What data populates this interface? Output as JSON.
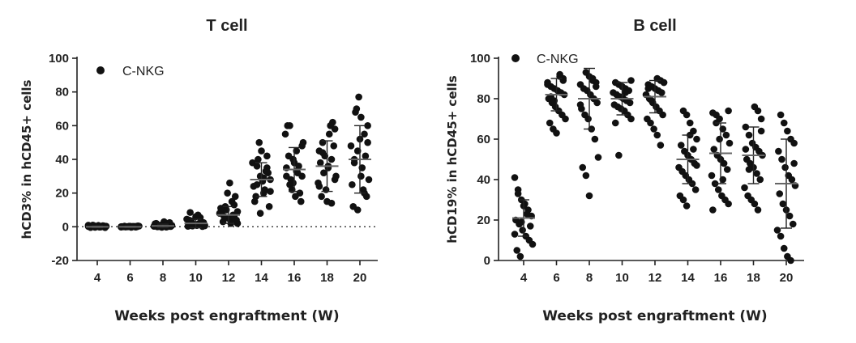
{
  "chart_data": [
    {
      "type": "scatter",
      "title": "T cell",
      "xlabel": "Weeks post engraftment (W)",
      "ylabel": "hCD3% in hCD45+ cells",
      "legend": "C-NKG",
      "legend_position": "top-left",
      "categories": [
        "4",
        "6",
        "8",
        "10",
        "12",
        "14",
        "16",
        "18",
        "20"
      ],
      "ylim": [
        -20,
        100
      ],
      "yticks": [
        "-20",
        "0",
        "20",
        "40",
        "60",
        "80",
        "100"
      ],
      "reference_line_y": 0,
      "groups": [
        {
          "week": "4",
          "mean": 0,
          "sd": 0.5,
          "values": [
            0.2,
            0.5,
            -0.3,
            0.8,
            0.1,
            -0.5,
            0.4,
            1.0,
            0.0,
            -0.2,
            0.6,
            0.3,
            -0.4,
            0.7,
            0.2,
            -0.1,
            0.5,
            0.9,
            0.0,
            0.3
          ]
        },
        {
          "week": "6",
          "mean": 0,
          "sd": 0.4,
          "values": [
            0.1,
            0.3,
            -0.2,
            0.4,
            0.0,
            -0.3,
            0.2,
            0.5,
            0.1,
            -0.1,
            0.3,
            0.2,
            -0.2,
            0.4,
            0.0,
            0.1,
            0.3,
            0.2,
            0.0,
            0.1
          ]
        },
        {
          "week": "8",
          "mean": 0.5,
          "sd": 1,
          "values": [
            0.5,
            1.5,
            -0.2,
            2.5,
            0.3,
            0.0,
            1.0,
            3.0,
            0.4,
            0.2,
            1.8,
            0.6,
            -0.3,
            1.2,
            0.2,
            0.8,
            2.0,
            0.1,
            0.5,
            0.9
          ]
        },
        {
          "week": "10",
          "mean": 2,
          "sd": 2.5,
          "values": [
            1.0,
            3.0,
            0.5,
            6.0,
            2.0,
            0.2,
            4.5,
            8.5,
            1.5,
            0.8,
            5.5,
            2.5,
            0.3,
            3.5,
            1.2,
            7.0,
            2.2,
            0.6,
            4.0,
            1.8
          ]
        },
        {
          "week": "12",
          "mean": 7,
          "sd": 5,
          "values": [
            4,
            6,
            2,
            9,
            12,
            5,
            15,
            18,
            8,
            3,
            10,
            26,
            7,
            4,
            11,
            6,
            20,
            2,
            13,
            9
          ]
        },
        {
          "week": "14",
          "mean": 28,
          "sd": 10,
          "values": [
            25,
            30,
            20,
            35,
            28,
            15,
            40,
            45,
            22,
            32,
            38,
            18,
            50,
            27,
            33,
            12,
            24,
            36,
            8,
            29,
            42,
            21
          ]
        },
        {
          "week": "16",
          "mean": 34,
          "sd": 13,
          "values": [
            30,
            35,
            25,
            40,
            45,
            20,
            50,
            60,
            28,
            38,
            32,
            15,
            55,
            42,
            22,
            18,
            36,
            48,
            30,
            60,
            26,
            33
          ]
        },
        {
          "week": "18",
          "mean": 36,
          "sd": 15,
          "values": [
            35,
            40,
            28,
            45,
            50,
            22,
            55,
            62,
            30,
            38,
            32,
            15,
            60,
            48,
            26,
            18,
            42,
            36,
            14,
            58,
            24,
            44
          ]
        },
        {
          "week": "20",
          "mean": 40,
          "sd": 20,
          "values": [
            40,
            45,
            30,
            55,
            60,
            25,
            68,
            77,
            35,
            42,
            28,
            12,
            70,
            52,
            22,
            18,
            48,
            38,
            10,
            65,
            20,
            50
          ]
        }
      ]
    },
    {
      "type": "scatter",
      "title": "B cell",
      "xlabel": "Weeks post engraftment (W)",
      "ylabel": "hCD19% in hCD45+ cells",
      "legend": "C-NKG",
      "legend_position": "top-left",
      "categories": [
        "4",
        "6",
        "8",
        "10",
        "12",
        "14",
        "16",
        "18",
        "20"
      ],
      "ylim": [
        0,
        100
      ],
      "yticks": [
        "0",
        "20",
        "40",
        "60",
        "80",
        "100"
      ],
      "groups": [
        {
          "week": "4",
          "mean": 21,
          "sd": 9,
          "values": [
            41,
            35,
            30,
            28,
            25,
            22,
            20,
            18,
            15,
            12,
            10,
            8,
            5,
            2,
            27,
            23,
            17,
            13,
            33,
            19
          ]
        },
        {
          "week": "6",
          "mean": 82,
          "sd": 8,
          "values": [
            92,
            90,
            88,
            86,
            85,
            84,
            83,
            82,
            80,
            78,
            76,
            74,
            72,
            70,
            68,
            65,
            63,
            91,
            89,
            87,
            81,
            79
          ]
        },
        {
          "week": "8",
          "mean": 80,
          "sd": 15,
          "values": [
            93,
            91,
            90,
            88,
            87,
            85,
            84,
            82,
            80,
            78,
            75,
            72,
            70,
            65,
            60,
            51,
            46,
            42,
            32,
            89,
            86,
            77
          ]
        },
        {
          "week": "10",
          "mean": 80,
          "sd": 8,
          "values": [
            89,
            88,
            87,
            86,
            85,
            84,
            83,
            82,
            81,
            80,
            79,
            78,
            77,
            76,
            75,
            74,
            72,
            70,
            68,
            52,
            86,
            83
          ]
        },
        {
          "week": "12",
          "mean": 81,
          "sd": 8,
          "values": [
            90,
            89,
            88,
            87,
            86,
            85,
            84,
            83,
            82,
            80,
            78,
            76,
            74,
            72,
            70,
            68,
            65,
            62,
            57,
            88,
            85,
            79
          ]
        },
        {
          "week": "14",
          "mean": 50,
          "sd": 12,
          "values": [
            74,
            72,
            68,
            64,
            60,
            57,
            54,
            52,
            50,
            48,
            46,
            44,
            42,
            40,
            38,
            35,
            32,
            30,
            27,
            62,
            55,
            47
          ]
        },
        {
          "week": "16",
          "mean": 53,
          "sd": 15,
          "values": [
            74,
            73,
            72,
            70,
            65,
            62,
            58,
            55,
            52,
            50,
            48,
            45,
            42,
            38,
            35,
            32,
            30,
            28,
            25,
            68,
            60,
            40
          ]
        },
        {
          "week": "18",
          "mean": 52,
          "sd": 14,
          "values": [
            76,
            74,
            70,
            66,
            62,
            58,
            56,
            54,
            52,
            50,
            48,
            46,
            43,
            40,
            36,
            32,
            30,
            28,
            25,
            64,
            55,
            45
          ]
        },
        {
          "week": "20",
          "mean": 38,
          "sd": 22,
          "values": [
            72,
            68,
            64,
            60,
            58,
            54,
            50,
            46,
            42,
            40,
            37,
            33,
            28,
            25,
            22,
            18,
            15,
            12,
            6,
            2,
            0,
            48
          ]
        }
      ]
    }
  ]
}
